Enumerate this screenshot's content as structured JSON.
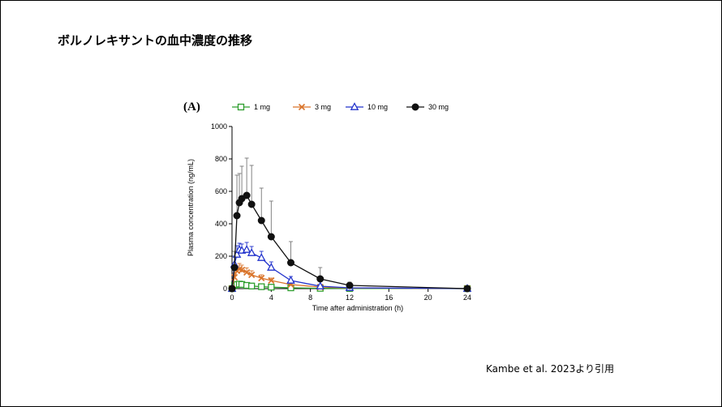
{
  "slide": {
    "title": "ボルノレキサントの血中濃度の推移",
    "citation": "Kambe et al. 2023より引用"
  },
  "chart_data": {
    "type": "line",
    "panel_label": "(A)",
    "xlabel": "Time after administration (h)",
    "ylabel": "Plasma concentration (ng/mL)",
    "xlim": [
      0,
      24
    ],
    "ylim": [
      0,
      1000
    ],
    "xticks": [
      0,
      4,
      8,
      12,
      16,
      20,
      24
    ],
    "yticks": [
      0,
      200,
      400,
      600,
      800,
      1000
    ],
    "grid": false,
    "legend_position": "top",
    "series": [
      {
        "name": "1 mg",
        "color": "#2e9e2e",
        "marker": "open-square",
        "x": [
          0,
          0.25,
          0.5,
          0.75,
          1,
          1.5,
          2,
          3,
          4,
          6,
          9,
          12,
          24
        ],
        "y": [
          0,
          20,
          25,
          28,
          26,
          20,
          16,
          12,
          9,
          5,
          2,
          1,
          0
        ],
        "err": [
          0,
          8,
          10,
          10,
          10,
          8,
          6,
          5,
          4,
          2,
          1,
          0,
          0
        ]
      },
      {
        "name": "3 mg",
        "color": "#d9742b",
        "marker": "x",
        "x": [
          0,
          0.25,
          0.5,
          0.75,
          1,
          1.5,
          2,
          3,
          4,
          6,
          9,
          12,
          24
        ],
        "y": [
          0,
          70,
          110,
          120,
          115,
          100,
          85,
          65,
          50,
          25,
          10,
          4,
          0
        ],
        "err": [
          0,
          25,
          30,
          35,
          30,
          28,
          25,
          20,
          15,
          10,
          5,
          2,
          0
        ]
      },
      {
        "name": "10 mg",
        "color": "#2233cc",
        "marker": "open-triangle",
        "x": [
          0,
          0.25,
          0.5,
          0.75,
          1,
          1.5,
          2,
          3,
          4,
          6,
          9,
          12,
          24
        ],
        "y": [
          0,
          150,
          210,
          240,
          235,
          240,
          220,
          190,
          130,
          50,
          15,
          5,
          0
        ],
        "err": [
          0,
          50,
          55,
          40,
          40,
          45,
          40,
          40,
          35,
          25,
          10,
          4,
          0
        ]
      },
      {
        "name": "30 mg",
        "color": "#111111",
        "marker": "filled-circle",
        "x": [
          0,
          0.25,
          0.5,
          0.75,
          1,
          1.5,
          2,
          3,
          4,
          6,
          9,
          12,
          24
        ],
        "y": [
          0,
          130,
          450,
          530,
          555,
          575,
          520,
          420,
          320,
          160,
          60,
          20,
          0
        ],
        "err": [
          0,
          100,
          250,
          180,
          200,
          230,
          240,
          200,
          220,
          130,
          70,
          20,
          15
        ]
      }
    ]
  }
}
